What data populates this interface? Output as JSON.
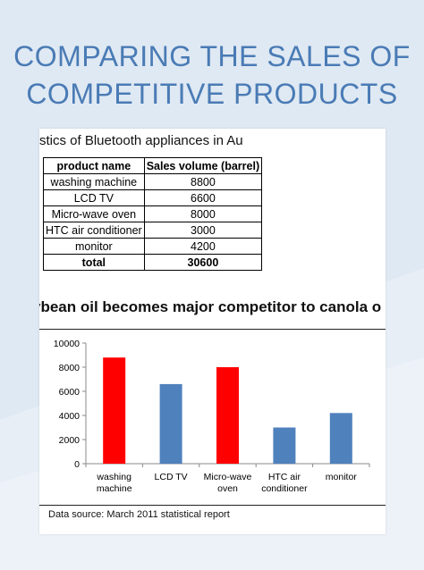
{
  "page": {
    "title_line1": "COMPARING THE SALES OF",
    "title_line2": "COMPETITIVE PRODUCTS"
  },
  "sheet": {
    "heading": "stics of Bluetooth appliances in Au",
    "table": {
      "headers": [
        "product name",
        "Sales volume (barrel)"
      ],
      "rows": [
        {
          "name": "washing machine",
          "value": "8800"
        },
        {
          "name": "LCD TV",
          "value": "6600"
        },
        {
          "name": "Micro-wave oven",
          "value": "8000"
        },
        {
          "name": "HTC air conditioner",
          "value": "3000"
        },
        {
          "name": "monitor",
          "value": "4200"
        }
      ],
      "total_label": "total",
      "total_value": "30600"
    },
    "chart_title": "ybean oil becomes major competitor to canola o",
    "source": "Data source: March 2011 statistical report"
  },
  "chart_data": {
    "type": "bar",
    "categories": [
      [
        "washing",
        "machine"
      ],
      [
        "LCD TV"
      ],
      [
        "Micro-wave",
        "oven"
      ],
      [
        "HTC air",
        "conditioner"
      ],
      [
        "monitor"
      ]
    ],
    "values": [
      8800,
      6600,
      8000,
      3000,
      4200
    ],
    "colors": [
      "#ff0000",
      "#4f81bd",
      "#ff0000",
      "#4f81bd",
      "#4f81bd"
    ],
    "ylim": [
      0,
      10000
    ],
    "yticks": [
      0,
      2000,
      4000,
      6000,
      8000,
      10000
    ],
    "grid": false
  }
}
